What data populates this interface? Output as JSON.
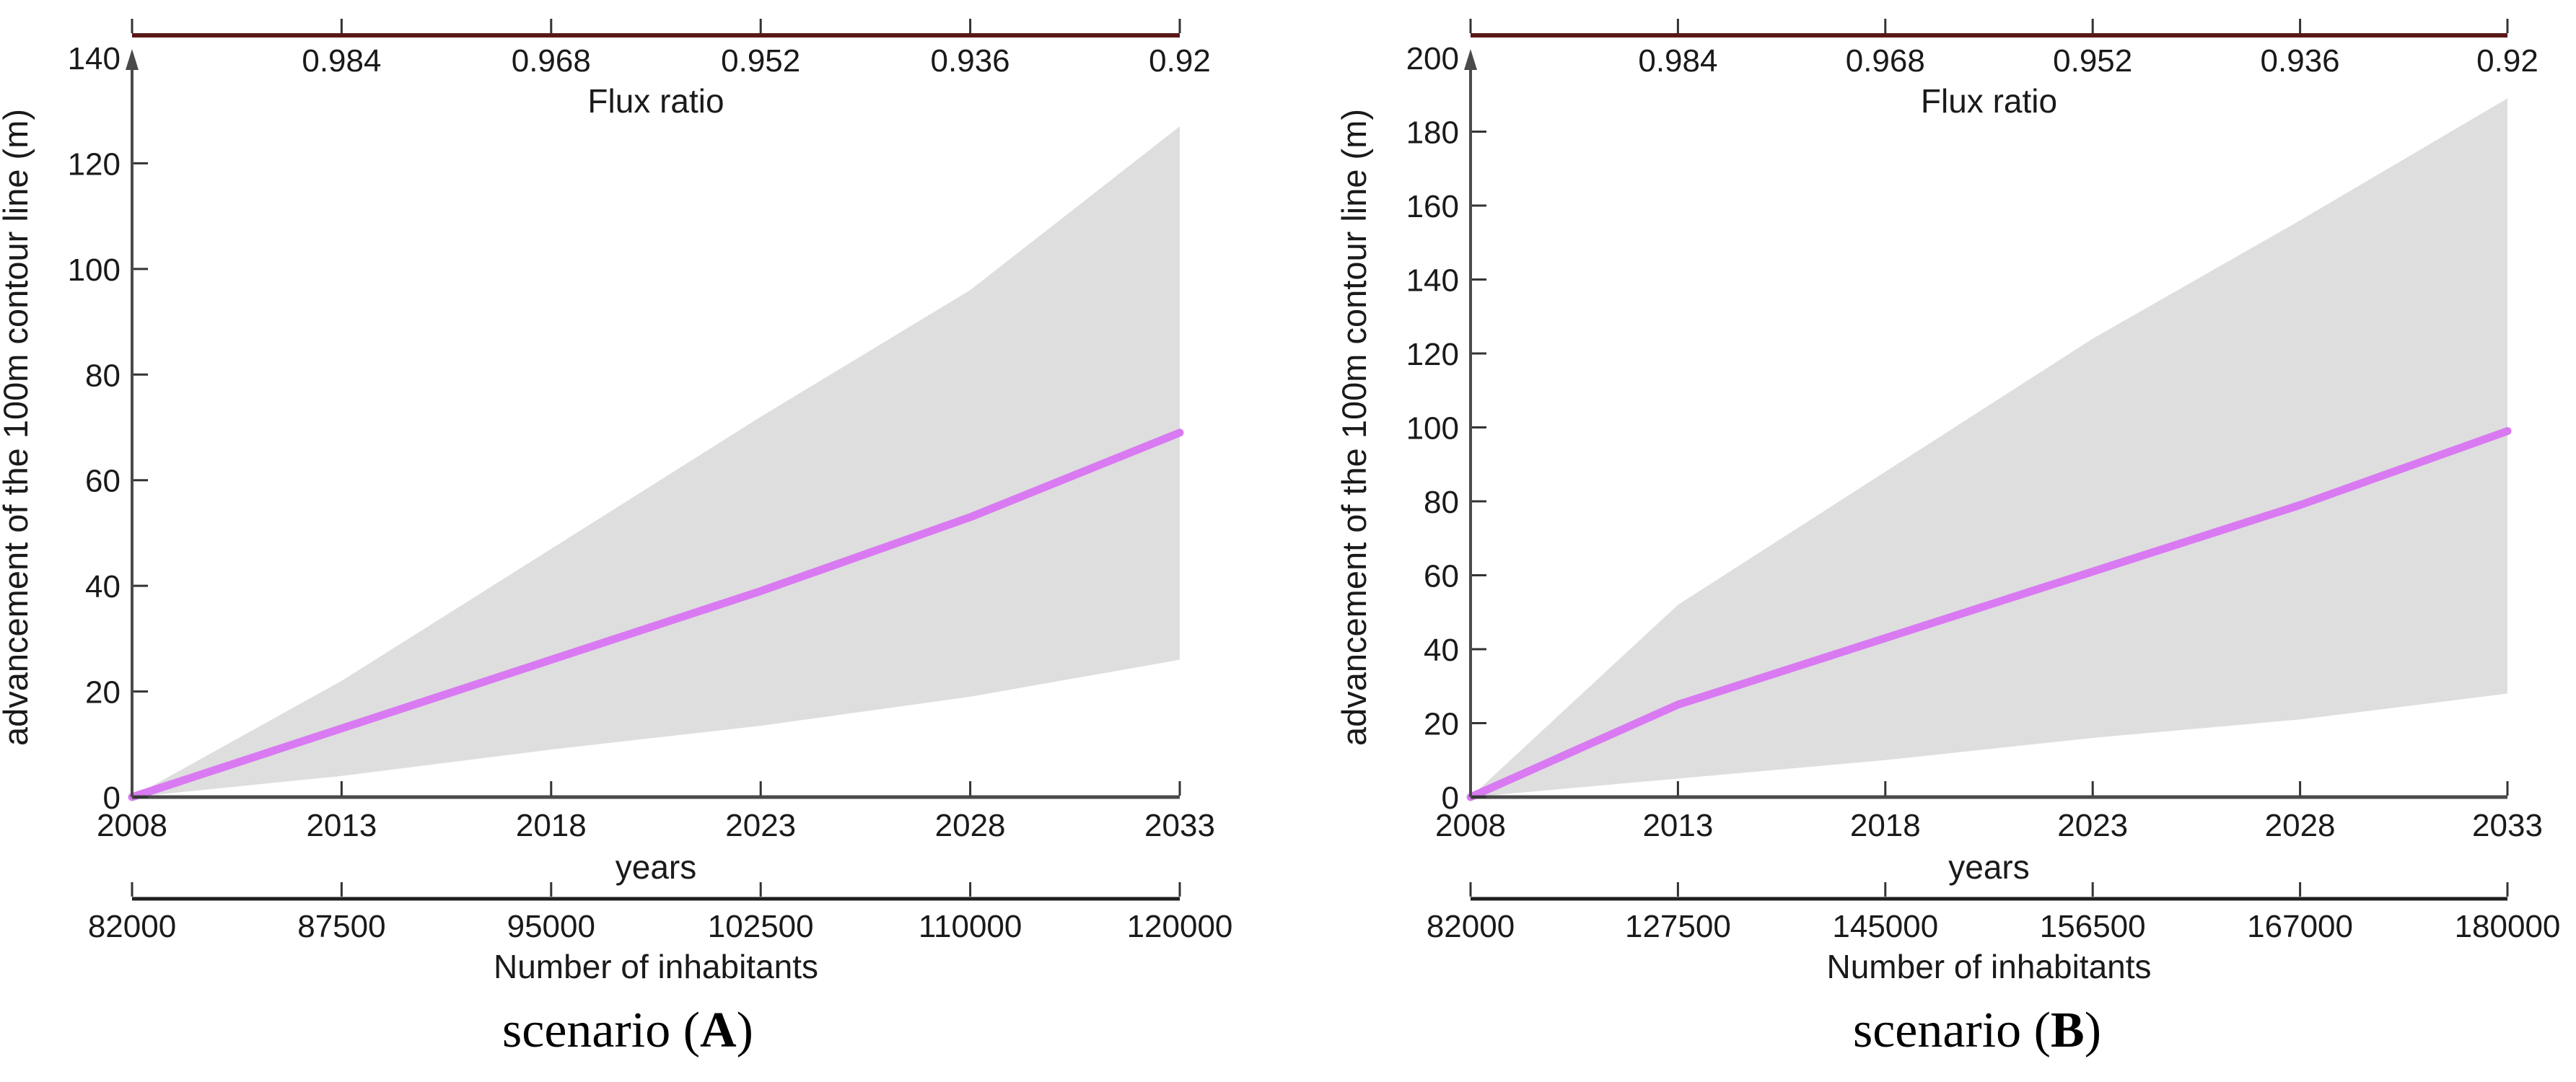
{
  "figure": {
    "background": "#ffffff"
  },
  "colors": {
    "median_line": "#d97af2",
    "band_fill": "#dedede",
    "flux_axis_line": "#5a1717",
    "plot_axis_line": "#4a4a4a",
    "inhabitants_axis_line": "#1f1f1f",
    "tick_mark": "#333333",
    "axis_text": "#1a1a1a",
    "caption_text": "#000000"
  },
  "chart_data": [
    {
      "id": "scenario-A",
      "type": "line",
      "caption": {
        "prefix": "scenario (",
        "letter": "A",
        "suffix": ")"
      },
      "xlabel": "years",
      "ylabel": "advancement of the 100m contour line (m)",
      "top_axis": {
        "label": "Flux ratio",
        "tick_labels": [
          "0.984",
          "0.968",
          "0.952",
          "0.936",
          "0.92"
        ]
      },
      "bottom_axis": {
        "label": "Number of inhabitants",
        "tick_labels": [
          "82000",
          "87500",
          "95000",
          "102500",
          "110000",
          "120000"
        ]
      },
      "x": [
        2008,
        2013,
        2018,
        2023,
        2028,
        2033
      ],
      "ylim": [
        0,
        140
      ],
      "yticks": [
        0,
        20,
        40,
        60,
        80,
        100,
        120,
        140
      ],
      "grid": false,
      "legend": "none",
      "series": [
        {
          "name": "median advancement",
          "role": "median",
          "color": "#d97af2",
          "values": [
            0,
            13,
            26,
            39,
            53,
            69
          ]
        },
        {
          "name": "uncertainty band upper",
          "role": "band-upper",
          "color": "#dedede",
          "values": [
            0,
            22,
            47,
            72,
            96,
            127
          ]
        },
        {
          "name": "uncertainty band lower",
          "role": "band-lower",
          "color": "#dedede",
          "values": [
            0,
            4,
            9,
            13.5,
            19,
            26
          ]
        }
      ]
    },
    {
      "id": "scenario-B",
      "type": "line",
      "caption": {
        "prefix": "scenario (",
        "letter": "B",
        "suffix": ")"
      },
      "xlabel": "years",
      "ylabel": "advancement of the 100m contour line (m)",
      "top_axis": {
        "label": "Flux ratio",
        "tick_labels": [
          "0.984",
          "0.968",
          "0.952",
          "0.936",
          "0.92"
        ]
      },
      "bottom_axis": {
        "label": "Number of inhabitants",
        "tick_labels": [
          "82000",
          "127500",
          "145000",
          "156500",
          "167000",
          "180000"
        ]
      },
      "x": [
        2008,
        2013,
        2018,
        2023,
        2028,
        2033
      ],
      "ylim": [
        0,
        200
      ],
      "yticks": [
        0,
        20,
        40,
        60,
        80,
        100,
        120,
        140,
        160,
        180,
        200
      ],
      "grid": false,
      "legend": "none",
      "series": [
        {
          "name": "median advancement",
          "role": "median",
          "color": "#d97af2",
          "values": [
            0,
            25,
            43,
            61,
            79,
            99
          ]
        },
        {
          "name": "uncertainty band upper",
          "role": "band-upper",
          "color": "#dedede",
          "values": [
            0,
            52,
            88,
            124,
            156,
            189
          ]
        },
        {
          "name": "uncertainty band lower",
          "role": "band-lower",
          "color": "#dedede",
          "values": [
            0,
            5,
            10,
            16,
            21,
            28
          ]
        }
      ]
    }
  ]
}
